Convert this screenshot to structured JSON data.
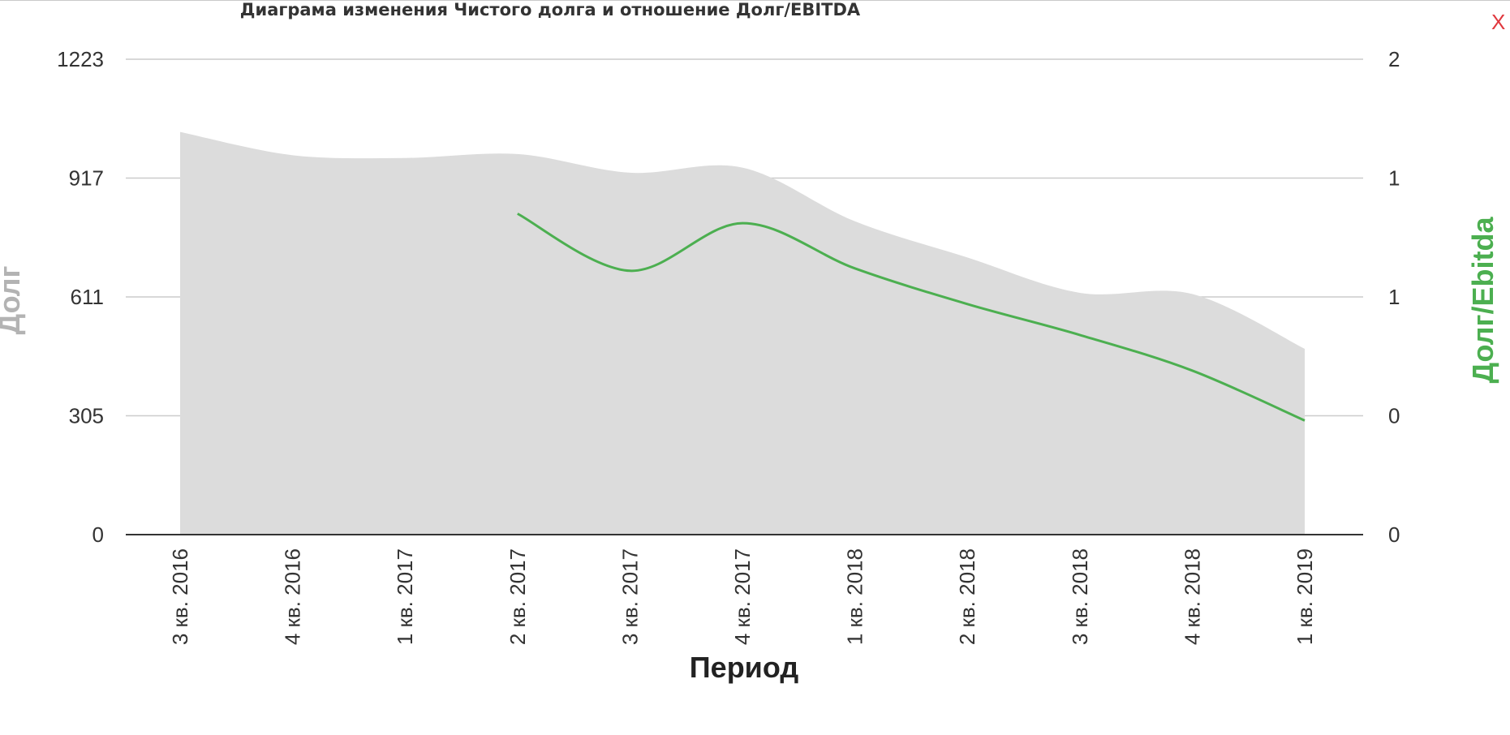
{
  "title": "Диаграма изменения Чистого долга и отношение Долг/EBITDA",
  "close_label": "X",
  "chart_data": {
    "type": "area",
    "xlabel": "Период",
    "ylabel_left": "Долг",
    "ylabel_right": "Долг/Ebitda",
    "categories": [
      "3 кв. 2016",
      "4 кв. 2016",
      "1 кв. 2017",
      "2 кв. 2017",
      "3 кв. 2017",
      "4 кв. 2017",
      "1 кв. 2018",
      "2 кв. 2018",
      "3 кв. 2018",
      "4 кв. 2018",
      "1 кв. 2019"
    ],
    "y_left": {
      "ticks": [
        "1223",
        "917",
        "611",
        "305",
        "0"
      ],
      "range": [
        0,
        1223
      ]
    },
    "y_right": {
      "ticks": [
        "2",
        "1",
        "1",
        "0",
        "0"
      ],
      "range": [
        0,
        2
      ]
    },
    "grid": true,
    "series": [
      {
        "name": "Долг",
        "axis": "left",
        "kind": "area",
        "color": "#dcdcdc",
        "values": [
          1036,
          976,
          969,
          979,
          931,
          944,
          806,
          713,
          622,
          619,
          478
        ]
      },
      {
        "name": "Долг/Ebitda",
        "axis": "right",
        "kind": "line",
        "color": "#4caf50",
        "values": [
          null,
          null,
          null,
          1.35,
          1.11,
          1.31,
          1.12,
          0.97,
          0.84,
          0.69,
          0.48
        ]
      }
    ]
  }
}
